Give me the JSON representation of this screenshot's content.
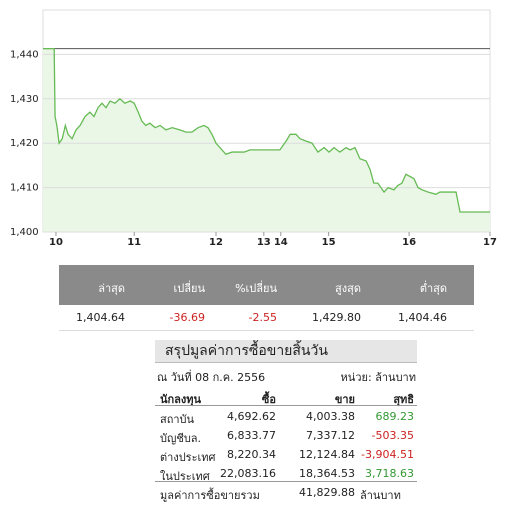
{
  "chart_data": {
    "type": "line",
    "color": "#66bb55",
    "area_color": "#eaf6e6",
    "grid": true,
    "reference_line": 1441.3,
    "reference_color": "#555555",
    "xlim": [
      0,
      100
    ],
    "ylim": [
      1400,
      1450
    ],
    "yticks": [
      {
        "value": 1400,
        "label": "1,400"
      },
      {
        "value": 1410,
        "label": "1,410"
      },
      {
        "value": 1420,
        "label": "1,420"
      },
      {
        "value": 1430,
        "label": "1,430"
      },
      {
        "value": 1440,
        "label": "1,440"
      }
    ],
    "xticks": [
      {
        "value": 2.9,
        "label": "10"
      },
      {
        "value": 20.4,
        "label": "11"
      },
      {
        "value": 38.7,
        "label": "12"
      },
      {
        "value": 49.4,
        "label": "13"
      },
      {
        "value": 53.2,
        "label": "14"
      },
      {
        "value": 63.9,
        "label": "15"
      },
      {
        "value": 81.9,
        "label": "16"
      },
      {
        "value": 100,
        "label": "17"
      }
    ],
    "x": [
      0,
      2.5,
      2.7,
      3.1,
      3.6,
      4.3,
      5.0,
      5.6,
      6.5,
      7.4,
      8.3,
      9.4,
      10.5,
      11.4,
      12.3,
      13.2,
      14.1,
      15.0,
      16.1,
      17.2,
      18.3,
      19.5,
      20.4,
      21.3,
      22.1,
      23.0,
      23.9,
      25.1,
      26.2,
      27.5,
      28.9,
      30.6,
      32.0,
      33.3,
      34.7,
      36.0,
      36.9,
      37.8,
      38.7,
      39.6,
      40.9,
      42.3,
      43.6,
      45.0,
      46.3,
      47.4,
      48.5,
      50.8,
      53.0,
      54.4,
      55.3,
      56.6,
      57.5,
      58.8,
      60.2,
      61.5,
      62.9,
      64.0,
      65.1,
      66.4,
      67.8,
      68.7,
      69.8,
      70.9,
      72.3,
      73.2,
      74.0,
      74.9,
      76.3,
      77.2,
      78.5,
      79.4,
      80.3,
      81.2,
      82.1,
      83.0,
      83.9,
      84.8,
      86.1,
      87.9,
      88.8,
      91.1,
      92.4,
      93.3,
      100
    ],
    "values": [
      1441.3,
      1441.3,
      1426,
      1424,
      1420,
      1421,
      1424,
      1422,
      1421,
      1423,
      1424,
      1426,
      1427,
      1426,
      1428,
      1429,
      1428,
      1429.5,
      1429,
      1430,
      1429,
      1429.5,
      1429,
      1427,
      1425,
      1424,
      1424.5,
      1423.5,
      1424,
      1423,
      1423.5,
      1423,
      1422.5,
      1422.5,
      1423.5,
      1424,
      1423.5,
      1422,
      1420,
      1419,
      1417.5,
      1418,
      1418,
      1418,
      1418.5,
      1418.5,
      1418.5,
      1418.5,
      1418.5,
      1420.5,
      1422,
      1422,
      1421,
      1420.5,
      1420,
      1418,
      1419,
      1418,
      1419,
      1418,
      1419,
      1418.5,
      1419,
      1416.5,
      1416,
      1414,
      1411,
      1411,
      1409,
      1410,
      1409.5,
      1410.5,
      1411,
      1413,
      1412.5,
      1412,
      1410,
      1409.5,
      1409,
      1408.5,
      1409,
      1409,
      1409,
      1404.5,
      1404.5
    ]
  },
  "stats": {
    "header": [
      "ล่าสุด",
      "เปลี่ยน",
      "%เปลี่ยน",
      "สูงสุด",
      "ต่ำสุด"
    ],
    "row": [
      "1,404.64",
      "-36.69",
      "-2.55",
      "1,429.80",
      "1,404.46"
    ]
  },
  "summary": {
    "title": "สรุปมูลค่าการซื้อขายสิ้นวัน",
    "date": "ณ วันที่ 08 ก.ค. 2556",
    "unit": "หน่วย: ล้านบาท",
    "header": [
      "นักลงทุน",
      "ซื้อ",
      "ขาย",
      "สุทธิ"
    ],
    "rows": [
      [
        "สถาบัน",
        "4,692.62",
        "4,003.38",
        "689.23"
      ],
      [
        "บัญชีบล.",
        "6,833.77",
        "7,337.12",
        "-503.35"
      ],
      [
        "ต่างประเทศ",
        "8,220.34",
        "12,124.84",
        "-3,904.51"
      ],
      [
        "ในประเทศ",
        "22,083.16",
        "18,364.53",
        "3,718.63"
      ]
    ],
    "total": [
      "มูลค่าการซื้อขายรวม",
      "41,829.88",
      "ล้านบาท"
    ]
  }
}
